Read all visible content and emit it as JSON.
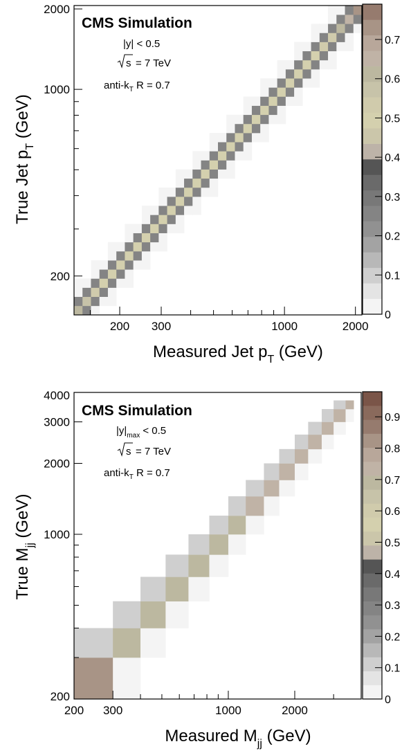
{
  "figure": {
    "panels": [
      {
        "id": "pt",
        "annotations": {
          "experiment": "CMS Simulation",
          "rapidity_main": "|y|",
          "rapidity_sub": "",
          "rapidity_rest": " < 0.5",
          "energy_value": "= 7 TeV",
          "algo_main": "anti-k",
          "algo_sub": "T",
          "algo_rest": " R = 0.7"
        },
        "xlabel": {
          "main": "Measured Jet p",
          "sub": "T",
          "rest": " (GeV)"
        },
        "ylabel": {
          "main": "True Jet p",
          "sub": "T",
          "rest": " (GeV)"
        }
      },
      {
        "id": "mjj",
        "annotations": {
          "experiment": "CMS Simulation",
          "rapidity_main": "|y|",
          "rapidity_sub": "max",
          "rapidity_rest": " < 0.5",
          "energy_value": "= 7 TeV",
          "algo_main": "anti-k",
          "algo_sub": "T",
          "algo_rest": " R = 0.7"
        },
        "xlabel": {
          "main": "Measured M",
          "sub": "jj",
          "rest": " (GeV)"
        },
        "ylabel": {
          "main": "True M",
          "sub": "jj",
          "rest": " (GeV)"
        }
      }
    ]
  },
  "chart_data": [
    {
      "type": "heatmap",
      "title": "",
      "xlabel": "Measured Jet pT (GeV)",
      "ylabel": "True Jet pT (GeV)",
      "xscale": "log",
      "yscale": "log",
      "xlim": [
        128,
        2130
      ],
      "ylim": [
        143,
        2060
      ],
      "xticks": [
        200,
        300,
        1000,
        2000
      ],
      "yticks": [
        200,
        1000,
        2000
      ],
      "zlim": [
        0,
        0.79
      ],
      "colorbar_ticks": [
        0,
        0.1,
        0.2,
        0.3,
        0.4,
        0.5,
        0.6,
        0.7
      ],
      "grid": false,
      "bins": 34,
      "diagonal_values": [
        0.62,
        0.56,
        0.53,
        0.5,
        0.5,
        0.5,
        0.5,
        0.5,
        0.5,
        0.5,
        0.5,
        0.5,
        0.5,
        0.5,
        0.5,
        0.5,
        0.5,
        0.5,
        0.5,
        0.5,
        0.5,
        0.5,
        0.5,
        0.5,
        0.5,
        0.5,
        0.5,
        0.5,
        0.5,
        0.52,
        0.55,
        0.6,
        0.66,
        0.72
      ],
      "off_diagonal_1": 0.24,
      "off_diagonal_2": 0.02,
      "off_diagonal_3": 0.01
    },
    {
      "type": "heatmap",
      "title": "",
      "xlabel": "Measured Mjj (GeV)",
      "ylabel": "True Mjj (GeV)",
      "xscale": "log",
      "yscale": "log",
      "xlim": [
        200,
        4000
      ],
      "ylim": [
        200,
        4000
      ],
      "xticks": [
        200,
        300,
        1000,
        2000
      ],
      "yticks": [
        200,
        1000,
        2000,
        3000,
        4000
      ],
      "zlim": [
        0,
        0.98
      ],
      "colorbar_ticks": [
        0,
        0.1,
        0.2,
        0.3,
        0.4,
        0.5,
        0.6,
        0.7,
        0.8,
        0.9
      ],
      "grid": false,
      "bin_edges": [
        200,
        300,
        400,
        520,
        660,
        820,
        1000,
        1200,
        1450,
        1700,
        2000,
        2300,
        2650,
        3000,
        3400,
        3700
      ],
      "diagonal_values": [
        0.9,
        0.76,
        0.76,
        0.77,
        0.78,
        0.78,
        0.78,
        0.79,
        0.79,
        0.8,
        0.8,
        0.8,
        0.8,
        0.8,
        0.8
      ],
      "below_diagonal": 0.03,
      "above_diagonal": 0.12
    }
  ]
}
